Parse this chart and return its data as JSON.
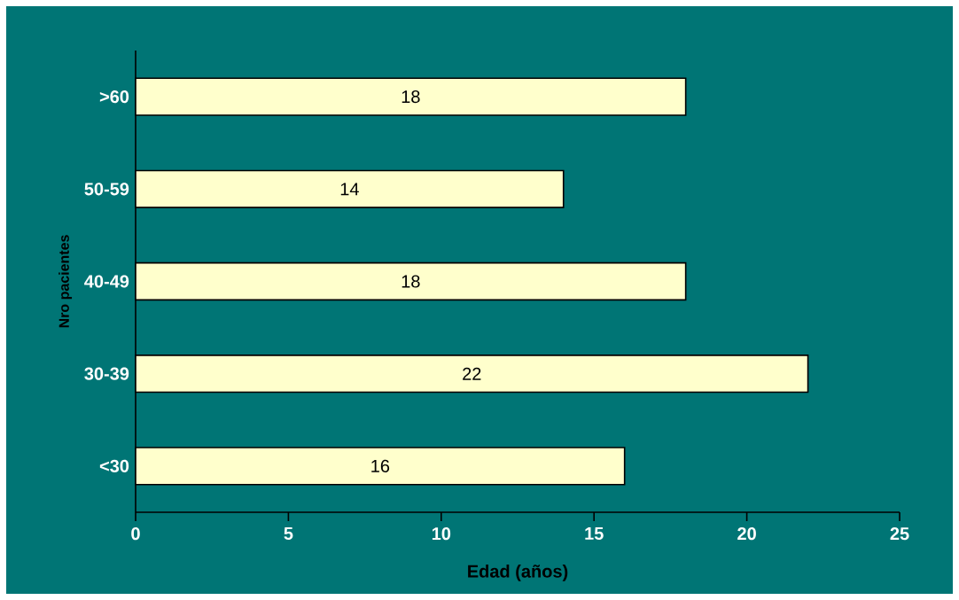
{
  "chart_data": {
    "type": "bar",
    "orientation": "horizontal",
    "xlabel": "Edad (años)",
    "ylabel": "Nro pacientes",
    "categories": [
      ">60",
      "50-59",
      "40-49",
      "30-39",
      "<30"
    ],
    "values": [
      18,
      14,
      18,
      22,
      16
    ],
    "color": "#ffffcc",
    "xlim": [
      0,
      25
    ],
    "xticks": [
      0,
      5,
      10,
      15,
      20,
      25
    ],
    "data_labels": true
  }
}
